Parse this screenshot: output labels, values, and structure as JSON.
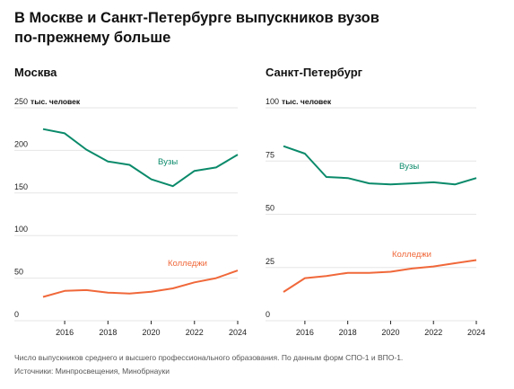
{
  "title_line1": "В Москве и Санкт-Петербурге выпускников вузов",
  "title_line2": "по-прежнему больше",
  "note": "Число выпускников среднего и высшего профессионального образования. По данным форм СПО-1 и ВПО-1.",
  "sources": "Источники: Минпросвещения, Минобрнауки",
  "colors": {
    "universities": "#0a8a6a",
    "colleges": "#f0683a",
    "grid": "#e6e6e6"
  },
  "chart_data": [
    {
      "type": "line",
      "title": "Москва",
      "unit_label": "тыс. человек",
      "x": [
        2015,
        2016,
        2017,
        2018,
        2019,
        2020,
        2021,
        2022,
        2023,
        2024
      ],
      "xticks": [
        2016,
        2018,
        2020,
        2022,
        2024
      ],
      "yticks": [
        0,
        50,
        100,
        150,
        200,
        250
      ],
      "ylim": [
        0,
        250
      ],
      "xlim": [
        2015,
        2024
      ],
      "grid": true,
      "series": [
        {
          "name": "Вузы",
          "values": [
            225,
            220,
            201,
            187,
            183,
            166,
            158,
            176,
            180,
            195
          ]
        },
        {
          "name": "Колледжи",
          "values": [
            28,
            35,
            36,
            33,
            32,
            34,
            38,
            45,
            50,
            59
          ]
        }
      ]
    },
    {
      "type": "line",
      "title": "Санкт-Петербург",
      "unit_label": "тыс. человек",
      "x": [
        2015,
        2016,
        2017,
        2018,
        2019,
        2020,
        2021,
        2022,
        2023,
        2024
      ],
      "xticks": [
        2016,
        2018,
        2020,
        2022,
        2024
      ],
      "yticks": [
        0,
        25,
        50,
        75,
        100
      ],
      "ylim": [
        0,
        100
      ],
      "xlim": [
        2015,
        2024
      ],
      "grid": true,
      "series": [
        {
          "name": "Вузы",
          "values": [
            82,
            78.5,
            67.5,
            67,
            64.5,
            64,
            64.5,
            65,
            64,
            67
          ]
        },
        {
          "name": "Колледжи",
          "values": [
            13.5,
            20,
            21,
            22.5,
            22.5,
            23,
            24.5,
            25.5,
            27,
            28.5
          ]
        }
      ]
    }
  ]
}
